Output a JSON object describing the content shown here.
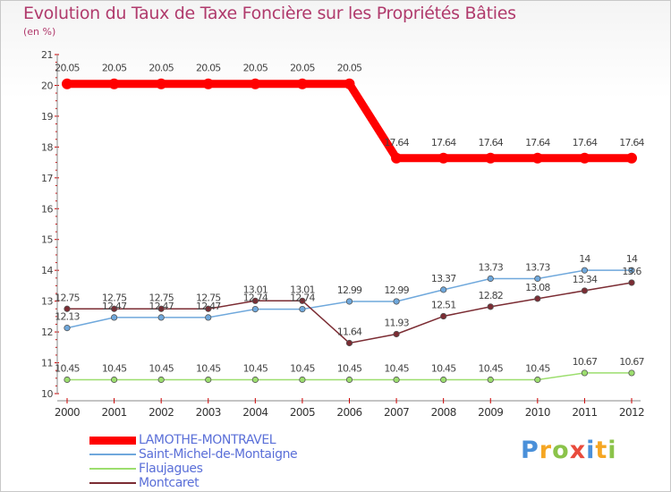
{
  "chart_data": {
    "type": "line",
    "title": "Evolution du Taux de Taxe Foncière sur les Propriétés Bâties",
    "ylabel": "(en %)",
    "xlabel": "",
    "x": [
      "2000",
      "2001",
      "2002",
      "2003",
      "2004",
      "2005",
      "2006",
      "2007",
      "2008",
      "2009",
      "2010",
      "2011",
      "2012"
    ],
    "ylim": [
      10,
      21
    ],
    "yticks": [
      "10",
      "11",
      "12",
      "13",
      "14",
      "15",
      "16",
      "17",
      "18",
      "19",
      "20",
      "21"
    ],
    "series": [
      {
        "name": "LAMOTHE-MONTRAVEL",
        "color": "#ff0000",
        "values": [
          20.05,
          20.05,
          20.05,
          20.05,
          20.05,
          20.05,
          20.05,
          17.64,
          17.64,
          17.64,
          17.64,
          17.64,
          17.64
        ],
        "labels": [
          "20.05",
          "20.05",
          "20.05",
          "20.05",
          "20.05",
          "20.05",
          "20.05",
          "17.64",
          "17.64",
          "17.64",
          "17.64",
          "17.64",
          "17.64"
        ]
      },
      {
        "name": "Saint-Michel-de-Montaigne",
        "color": "#6fa8dc",
        "values": [
          12.13,
          12.47,
          12.47,
          12.47,
          12.74,
          12.74,
          12.99,
          12.99,
          13.37,
          13.73,
          13.73,
          14,
          14
        ],
        "labels": [
          "12.13",
          "12.47",
          "12.47",
          "12.47",
          "12.74",
          "12.74",
          "12.99",
          "12.99",
          "13.37",
          "13.73",
          "13.73",
          "14",
          "14"
        ]
      },
      {
        "name": "Flaujagues",
        "color": "#9cde6e",
        "values": [
          10.45,
          10.45,
          10.45,
          10.45,
          10.45,
          10.45,
          10.45,
          10.45,
          10.45,
          10.45,
          10.45,
          10.67,
          10.67
        ],
        "labels": [
          "10.45",
          "10.45",
          "10.45",
          "10.45",
          "10.45",
          "10.45",
          "10.45",
          "10.45",
          "10.45",
          "10.45",
          "10.45",
          "10.67",
          "10.67"
        ]
      },
      {
        "name": "Montcaret",
        "color": "#7b2c33",
        "values": [
          12.75,
          12.75,
          12.75,
          12.75,
          13.01,
          13.01,
          11.64,
          11.93,
          12.51,
          12.82,
          13.08,
          13.34,
          13.6
        ],
        "labels": [
          "12.75",
          "12.75",
          "12.75",
          "12.75",
          "13.01",
          "13.01",
          "11.64",
          "11.93",
          "12.51",
          "12.82",
          "13.08",
          "13.34",
          "13.6"
        ]
      }
    ]
  },
  "logo": {
    "letters": [
      "P",
      "r",
      "o",
      "x",
      "i",
      "t",
      "i"
    ],
    "colors": [
      "#4a90d9",
      "#f5a623",
      "#8bc34a",
      "#e94b3c",
      "#4a90d9",
      "#f5a623",
      "#8bc34a"
    ]
  }
}
